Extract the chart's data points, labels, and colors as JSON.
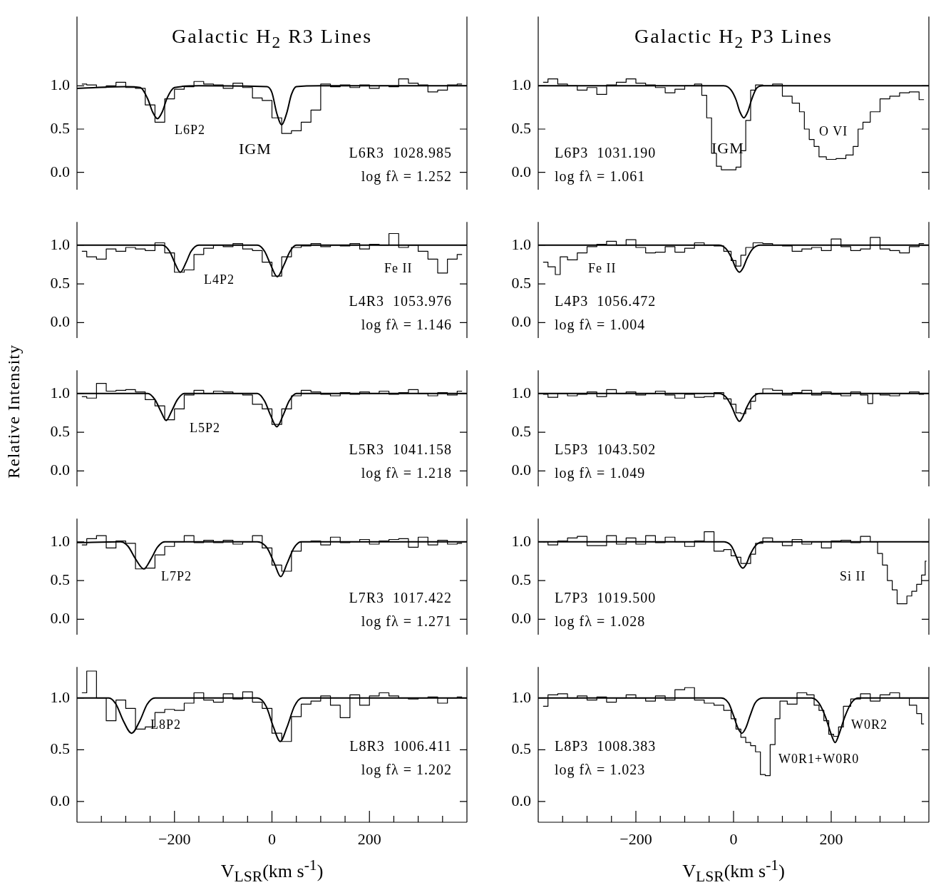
{
  "chart_data": [
    {
      "type": "step",
      "title": "Galactic H$_{2}$ R3 Lines",
      "xlim": [
        -400,
        400
      ],
      "ylim": [
        -0.2,
        1.8
      ],
      "tick_labels": "y",
      "yticks": [
        {
          "value": 0,
          "label": "0.0"
        },
        {
          "value": 0.5,
          "label": "0.5"
        },
        {
          "value": 1,
          "label": "1.0"
        }
      ],
      "marker": "none",
      "line_style": "solid",
      "annotations": [
        "L6P2",
        "IGM",
        "L6R3  1028.985",
        "log fλ = 1.252"
      ],
      "series": [
        {
          "color": "#000000",
          "x": [
            -390,
            -370,
            -350,
            -330,
            -310,
            -290,
            -270,
            -250,
            -230,
            -210,
            -190,
            -170,
            -150,
            -130,
            -110,
            -90,
            -70,
            -50,
            -30,
            -10,
            10,
            30,
            50,
            70,
            90,
            110,
            130,
            150,
            170,
            190,
            210,
            230,
            250,
            270,
            290,
            310,
            330,
            350,
            370,
            390
          ],
          "values": [
            1.02,
            1.01,
            0.98,
            1.0,
            1.04,
            0.98,
            0.97,
            0.78,
            0.58,
            0.85,
            0.96,
            0.99,
            1.05,
            1.02,
            1.01,
            0.97,
            1.03,
            0.98,
            0.86,
            0.83,
            0.63,
            0.45,
            0.48,
            0.58,
            0.72,
            1.02,
            0.99,
            1.01,
            0.98,
            1.01,
            0.97,
            1.0,
            0.99,
            1.08,
            1.03,
            1.01,
            0.93,
            0.95,
            1.01,
            1.02
          ]
        },
        {
          "type": "line",
          "color": "#000000",
          "x": [
            -400,
            -300,
            -270,
            -255,
            -245,
            -235,
            -225,
            -215,
            -200,
            -150,
            -10,
            0,
            10,
            20,
            30,
            40,
            50,
            100,
            400
          ],
          "values": [
            0.97,
            0.99,
            0.98,
            0.85,
            0.7,
            0.62,
            0.7,
            0.86,
            0.98,
            1.0,
            0.99,
            0.92,
            0.68,
            0.55,
            0.68,
            0.9,
            0.99,
            1.0,
            1.0
          ]
        }
      ]
    },
    {
      "type": "step",
      "title": "Galactic H$_{2}$ P3 Lines",
      "xlim": [
        -400,
        400
      ],
      "ylim": [
        -0.2,
        1.8
      ],
      "tick_labels": "y",
      "yticks": [
        {
          "value": 0,
          "label": "0.0"
        },
        {
          "value": 0.5,
          "label": "0.5"
        },
        {
          "value": 1,
          "label": "1.0"
        }
      ],
      "marker": "none",
      "line_style": "solid",
      "annotations": [
        "IGM",
        "O VI",
        "L6P3  1031.190",
        "log fλ = 1.061"
      ],
      "series": [
        {
          "color": "#000000",
          "x": [
            -390,
            -370,
            -350,
            -330,
            -310,
            -290,
            -270,
            -250,
            -230,
            -210,
            -190,
            -170,
            -150,
            -130,
            -110,
            -90,
            -70,
            -60,
            -50,
            -40,
            -30,
            -20,
            -10,
            0,
            10,
            20,
            30,
            40,
            50,
            70,
            90,
            110,
            130,
            140,
            150,
            160,
            170,
            180,
            200,
            220,
            240,
            250,
            260,
            270,
            290,
            310,
            330,
            350,
            370,
            390
          ],
          "values": [
            1.04,
            1.08,
            1.02,
            1.0,
            0.95,
            0.98,
            0.9,
            1.01,
            1.04,
            1.08,
            1.03,
            1.01,
            0.98,
            0.92,
            0.96,
            1.0,
            1.02,
            0.89,
            0.63,
            0.22,
            0.07,
            0.03,
            0.03,
            0.03,
            0.06,
            0.25,
            0.6,
            0.95,
            1.01,
            1.0,
            1.02,
            0.88,
            0.8,
            0.7,
            0.5,
            0.38,
            0.3,
            0.18,
            0.15,
            0.16,
            0.2,
            0.3,
            0.5,
            0.58,
            0.7,
            0.85,
            0.88,
            0.92,
            0.93,
            0.84
          ]
        },
        {
          "type": "line",
          "color": "#000000",
          "x": [
            -400,
            -20,
            -5,
            5,
            13,
            21,
            29,
            37,
            47,
            60,
            400
          ],
          "values": [
            1,
            1,
            0.95,
            0.84,
            0.7,
            0.63,
            0.7,
            0.84,
            0.97,
            1,
            1
          ]
        }
      ]
    },
    {
      "type": "step",
      "xlim": [
        -400,
        400
      ],
      "ylim": [
        -0.2,
        1.3
      ],
      "tick_labels": "y",
      "yticks": [
        {
          "value": 0,
          "label": "0.0"
        },
        {
          "value": 0.5,
          "label": "0.5"
        },
        {
          "value": 1,
          "label": "1.0"
        }
      ],
      "marker": "none",
      "line_style": "solid",
      "annotations": [
        "L4P2",
        "Fe II",
        "L4R3  1053.976",
        "log fλ = 1.146"
      ],
      "series": [
        {
          "color": "#000000",
          "x": [
            -390,
            -370,
            -350,
            -330,
            -310,
            -290,
            -270,
            -250,
            -230,
            -210,
            -190,
            -170,
            -150,
            -130,
            -110,
            -90,
            -70,
            -50,
            -30,
            -10,
            10,
            30,
            50,
            70,
            90,
            110,
            130,
            150,
            170,
            190,
            210,
            230,
            250,
            270,
            290,
            310,
            330,
            350,
            370,
            390
          ],
          "values": [
            0.92,
            0.85,
            0.82,
            0.95,
            0.92,
            0.97,
            0.95,
            0.93,
            1.03,
            0.9,
            0.65,
            0.68,
            0.88,
            0.96,
            1.0,
            0.98,
            1.02,
            0.95,
            0.93,
            0.78,
            0.6,
            0.85,
            0.97,
            0.99,
            1.02,
            0.98,
            1.0,
            0.99,
            1.02,
            0.95,
            1.01,
            1.0,
            1.15,
            0.97,
            1.0,
            0.92,
            0.82,
            0.64,
            0.82,
            0.88
          ]
        },
        {
          "type": "line",
          "color": "#000000",
          "x": [
            -400,
            -225,
            -210,
            -200,
            -188,
            -176,
            -166,
            -150,
            -30,
            -15,
            -3,
            11,
            25,
            37,
            50,
            400
          ],
          "values": [
            1,
            1,
            0.92,
            0.78,
            0.65,
            0.78,
            0.92,
            1,
            1,
            0.92,
            0.75,
            0.59,
            0.75,
            0.92,
            1,
            1
          ]
        }
      ]
    },
    {
      "type": "step",
      "xlim": [
        -400,
        400
      ],
      "ylim": [
        -0.2,
        1.3
      ],
      "tick_labels": "y",
      "yticks": [
        {
          "value": 0,
          "label": "0.0"
        },
        {
          "value": 0.5,
          "label": "0.5"
        },
        {
          "value": 1,
          "label": "1.0"
        }
      ],
      "marker": "none",
      "line_style": "solid",
      "annotations": [
        "Fe II",
        "L4P3  1056.472",
        "log fλ = 1.004"
      ],
      "series": [
        {
          "color": "#000000",
          "x": [
            -390,
            -370,
            -360,
            -350,
            -330,
            -310,
            -290,
            -270,
            -250,
            -230,
            -210,
            -190,
            -170,
            -150,
            -130,
            -110,
            -90,
            -70,
            -50,
            -30,
            -10,
            0,
            10,
            20,
            30,
            50,
            70,
            90,
            110,
            130,
            150,
            170,
            190,
            210,
            230,
            250,
            270,
            290,
            310,
            330,
            350,
            370,
            390
          ],
          "values": [
            0.78,
            0.72,
            0.62,
            0.85,
            0.81,
            0.9,
            0.98,
            1.01,
            1.05,
            1.0,
            1.07,
            0.97,
            0.9,
            0.91,
            0.98,
            0.91,
            0.96,
            1.03,
            1.0,
            0.99,
            0.92,
            0.8,
            0.73,
            0.87,
            0.97,
            1.03,
            1.02,
            1.0,
            0.99,
            0.92,
            0.95,
            0.97,
            0.93,
            1.08,
            0.98,
            0.93,
            0.95,
            1.1,
            0.95,
            0.93,
            0.9,
            0.98,
            1.02
          ]
        },
        {
          "type": "line",
          "color": "#000000",
          "x": [
            -400,
            -30,
            -15,
            -3,
            5,
            12,
            19,
            27,
            39,
            55,
            400
          ],
          "values": [
            1,
            1,
            0.95,
            0.82,
            0.7,
            0.65,
            0.7,
            0.82,
            0.95,
            1,
            1
          ]
        }
      ]
    },
    {
      "type": "step",
      "ylabel": "Relative Intensity",
      "xlim": [
        -400,
        400
      ],
      "ylim": [
        -0.2,
        1.3
      ],
      "tick_labels": "y",
      "yticks": [
        {
          "value": 0,
          "label": "0.0"
        },
        {
          "value": 0.5,
          "label": "0.5"
        },
        {
          "value": 1,
          "label": "1.0"
        }
      ],
      "marker": "none",
      "line_style": "solid",
      "annotations": [
        "L5P2",
        "L5R3  1041.158",
        "log fλ = 1.218"
      ],
      "series": [
        {
          "color": "#000000",
          "x": [
            -390,
            -370,
            -350,
            -330,
            -310,
            -290,
            -270,
            -250,
            -230,
            -210,
            -190,
            -170,
            -150,
            -130,
            -110,
            -90,
            -70,
            -50,
            -30,
            -10,
            10,
            30,
            50,
            70,
            90,
            110,
            130,
            150,
            170,
            190,
            210,
            230,
            250,
            270,
            290,
            310,
            330,
            350,
            370,
            390
          ],
          "values": [
            0.96,
            0.94,
            1.13,
            1.03,
            1.04,
            1.05,
            1.02,
            0.92,
            0.84,
            0.66,
            0.8,
            0.98,
            1.04,
            1.0,
            1.03,
            1.02,
            1.0,
            0.98,
            0.86,
            0.8,
            0.6,
            0.8,
            0.97,
            1.04,
            1.02,
            0.99,
            0.97,
            1.01,
            0.99,
            1.02,
            1.0,
            1.03,
            0.99,
            1.01,
            1.05,
            1.0,
            0.97,
            1.01,
            0.98,
            1.03
          ]
        },
        {
          "type": "line",
          "color": "#000000",
          "x": [
            -400,
            -255,
            -240,
            -228,
            -217,
            -206,
            -194,
            -180,
            -30,
            -15,
            -3,
            10,
            23,
            35,
            50,
            400
          ],
          "values": [
            1,
            1,
            0.92,
            0.77,
            0.65,
            0.77,
            0.92,
            1,
            1,
            0.9,
            0.72,
            0.57,
            0.72,
            0.9,
            1,
            1
          ]
        }
      ]
    },
    {
      "type": "step",
      "xlim": [
        -400,
        400
      ],
      "ylim": [
        -0.2,
        1.3
      ],
      "tick_labels": "y",
      "yticks": [
        {
          "value": 0,
          "label": "0.0"
        },
        {
          "value": 0.5,
          "label": "0.5"
        },
        {
          "value": 1,
          "label": "1.0"
        }
      ],
      "marker": "none",
      "line_style": "solid",
      "annotations": [
        "L5P3  1043.502",
        "log fλ = 1.049"
      ],
      "series": [
        {
          "color": "#000000",
          "x": [
            -390,
            -370,
            -350,
            -330,
            -310,
            -290,
            -270,
            -250,
            -230,
            -210,
            -190,
            -170,
            -150,
            -130,
            -110,
            -90,
            -70,
            -50,
            -30,
            -10,
            0,
            10,
            20,
            30,
            40,
            50,
            70,
            90,
            110,
            130,
            150,
            170,
            190,
            210,
            230,
            250,
            270,
            280,
            290,
            310,
            330,
            350,
            370,
            390
          ],
          "values": [
            0.99,
            0.95,
            1.0,
            0.97,
            0.99,
            1.02,
            0.96,
            1.05,
            1.0,
            1.02,
            0.98,
            1.0,
            1.03,
            0.98,
            0.94,
            0.99,
            0.95,
            0.96,
            1.01,
            0.93,
            0.86,
            0.75,
            0.74,
            0.8,
            0.9,
            1.0,
            1.06,
            1.04,
            0.98,
            1.01,
            1.04,
            0.98,
            1.02,
            0.99,
            0.97,
            1.02,
            0.98,
            0.87,
            1.0,
            0.98,
            0.97,
            1.0,
            1.02,
            0.99
          ]
        },
        {
          "type": "line",
          "color": "#000000",
          "x": [
            -400,
            -30,
            -15,
            -3,
            5,
            12,
            19,
            27,
            39,
            55,
            400
          ],
          "values": [
            1,
            1,
            0.95,
            0.82,
            0.7,
            0.64,
            0.7,
            0.82,
            0.95,
            1,
            1
          ]
        }
      ]
    },
    {
      "type": "step",
      "xlim": [
        -400,
        400
      ],
      "ylim": [
        -0.2,
        1.3
      ],
      "tick_labels": "y",
      "yticks": [
        {
          "value": 0,
          "label": "0.0"
        },
        {
          "value": 0.5,
          "label": "0.5"
        },
        {
          "value": 1,
          "label": "1.0"
        }
      ],
      "marker": "none",
      "line_style": "solid",
      "annotations": [
        "L7P2",
        "L7R3  1017.422",
        "log fλ = 1.271"
      ],
      "series": [
        {
          "color": "#000000",
          "x": [
            -390,
            -370,
            -350,
            -330,
            -310,
            -290,
            -270,
            -250,
            -230,
            -210,
            -190,
            -170,
            -150,
            -130,
            -110,
            -90,
            -70,
            -50,
            -30,
            -10,
            10,
            30,
            50,
            70,
            90,
            110,
            130,
            150,
            170,
            190,
            210,
            230,
            250,
            270,
            290,
            310,
            330,
            350,
            370,
            390
          ],
          "values": [
            0.96,
            1.04,
            1.08,
            0.92,
            1.01,
            0.98,
            0.65,
            0.66,
            0.83,
            0.94,
            1.0,
            1.08,
            0.99,
            1.02,
            0.99,
            1.02,
            0.97,
            1.0,
            1.08,
            0.92,
            0.7,
            0.62,
            0.88,
            1.0,
            1.01,
            0.96,
            1.06,
            0.99,
            1.0,
            1.03,
            0.97,
            1.01,
            1.03,
            1.04,
            0.93,
            1.06,
            0.96,
            1.02,
            0.97,
            0.98
          ]
        },
        {
          "type": "line",
          "color": "#000000",
          "x": [
            -400,
            -310,
            -295,
            -280,
            -263,
            -248,
            -235,
            -220,
            -30,
            -10,
            5,
            18,
            31,
            45,
            60,
            400
          ],
          "values": [
            0.99,
            1,
            0.94,
            0.78,
            0.65,
            0.78,
            0.93,
            1,
            1,
            0.92,
            0.72,
            0.55,
            0.72,
            0.92,
            1,
            1
          ]
        }
      ]
    },
    {
      "type": "step",
      "xlim": [
        -400,
        400
      ],
      "ylim": [
        -0.2,
        1.3
      ],
      "tick_labels": "y",
      "yticks": [
        {
          "value": 0,
          "label": "0.0"
        },
        {
          "value": 0.5,
          "label": "0.5"
        },
        {
          "value": 1,
          "label": "1.0"
        }
      ],
      "marker": "none",
      "line_style": "solid",
      "annotations": [
        "Si II",
        "L7P3  1019.500",
        "log fλ = 1.028"
      ],
      "series": [
        {
          "color": "#000000",
          "x": [
            -390,
            -370,
            -350,
            -330,
            -310,
            -290,
            -270,
            -250,
            -230,
            -210,
            -190,
            -170,
            -150,
            -130,
            -110,
            -90,
            -70,
            -50,
            -30,
            -10,
            0,
            10,
            20,
            30,
            40,
            50,
            70,
            90,
            110,
            130,
            150,
            170,
            190,
            210,
            230,
            250,
            270,
            290,
            300,
            310,
            320,
            330,
            340,
            350,
            360,
            370,
            380,
            390,
            395
          ],
          "values": [
            1.0,
            0.96,
            1.01,
            1.05,
            1.07,
            0.95,
            0.95,
            1.08,
            0.97,
            1.05,
            0.97,
            1.08,
            0.99,
            1.06,
            1.0,
            0.94,
            1.01,
            1.13,
            0.88,
            0.9,
            0.82,
            0.8,
            0.72,
            0.72,
            0.84,
            0.98,
            1.05,
            1.0,
            0.95,
            1.03,
            0.97,
            1.0,
            0.92,
            1.01,
            1.02,
            0.99,
            1.07,
            1.0,
            0.85,
            0.7,
            0.5,
            0.38,
            0.2,
            0.2,
            0.3,
            0.36,
            0.45,
            0.57,
            0.75
          ]
        },
        {
          "type": "line",
          "color": "#000000",
          "x": [
            -400,
            -20,
            -5,
            5,
            12,
            19,
            26,
            33,
            45,
            60,
            400
          ],
          "values": [
            1,
            1,
            0.95,
            0.82,
            0.71,
            0.66,
            0.71,
            0.82,
            0.95,
            1,
            1
          ]
        }
      ]
    },
    {
      "type": "step",
      "xlabel": "V$_{LSR}$(km s$^{-1}$)",
      "xlim": [
        -400,
        400
      ],
      "ylim": [
        -0.2,
        1.3
      ],
      "xticks": [
        {
          "value": -350,
          "label": null
        },
        {
          "value": -300,
          "label": null
        },
        {
          "value": -250,
          "label": null
        },
        {
          "value": -200,
          "label": "−200"
        },
        {
          "value": -150,
          "label": null
        },
        {
          "value": -100,
          "label": null
        },
        {
          "value": -50,
          "label": null
        },
        {
          "value": 0,
          "label": "0"
        },
        {
          "value": 50,
          "label": null
        },
        {
          "value": 100,
          "label": null
        },
        {
          "value": 150,
          "label": null
        },
        {
          "value": 200,
          "label": "200"
        },
        {
          "value": 250,
          "label": null
        },
        {
          "value": 300,
          "label": null
        },
        {
          "value": 350,
          "label": null
        }
      ],
      "yticks": [
        {
          "value": 0,
          "label": "0.0"
        },
        {
          "value": 0.5,
          "label": "0.5"
        },
        {
          "value": 1,
          "label": "1.0"
        }
      ],
      "marker": "none",
      "line_style": "solid",
      "annotations": [
        "L8P2",
        "L8R3  1006.411",
        "log fλ = 1.202"
      ],
      "series": [
        {
          "color": "#000000",
          "x": [
            -390,
            -370,
            -350,
            -330,
            -310,
            -290,
            -270,
            -250,
            -230,
            -210,
            -190,
            -170,
            -150,
            -130,
            -110,
            -90,
            -70,
            -50,
            -30,
            -10,
            10,
            30,
            50,
            70,
            90,
            110,
            130,
            150,
            170,
            190,
            210,
            230,
            250,
            270,
            290,
            310,
            330,
            350,
            370,
            390
          ],
          "values": [
            1.05,
            1.26,
            1.0,
            0.78,
            0.98,
            0.9,
            0.7,
            0.72,
            0.86,
            0.89,
            0.88,
            0.95,
            1.05,
            0.98,
            0.96,
            1.04,
            0.99,
            1.06,
            0.96,
            0.9,
            0.66,
            0.58,
            0.82,
            0.94,
            0.97,
            1.02,
            0.93,
            0.81,
            1.03,
            0.93,
            1.02,
            1.05,
            1.02,
            1.0,
            0.99,
            1.0,
            1.01,
            0.95,
            1.0,
            1.01
          ]
        },
        {
          "type": "line",
          "color": "#000000",
          "x": [
            -400,
            -335,
            -320,
            -305,
            -288,
            -271,
            -256,
            -240,
            -30,
            -12,
            3,
            17,
            31,
            46,
            62,
            400
          ],
          "values": [
            1,
            1,
            0.94,
            0.78,
            0.66,
            0.78,
            0.94,
            1,
            1,
            0.92,
            0.72,
            0.58,
            0.72,
            0.92,
            1,
            1
          ]
        }
      ]
    },
    {
      "type": "step",
      "xlabel": "V$_{LSR}$(km s$^{-1}$)",
      "xlim": [
        -400,
        400
      ],
      "ylim": [
        -0.2,
        1.3
      ],
      "xticks": [
        {
          "value": -350,
          "label": null
        },
        {
          "value": -300,
          "label": null
        },
        {
          "value": -250,
          "label": null
        },
        {
          "value": -200,
          "label": "−200"
        },
        {
          "value": -150,
          "label": null
        },
        {
          "value": -100,
          "label": null
        },
        {
          "value": -50,
          "label": null
        },
        {
          "value": 0,
          "label": "0"
        },
        {
          "value": 50,
          "label": null
        },
        {
          "value": 100,
          "label": null
        },
        {
          "value": 150,
          "label": null
        },
        {
          "value": 200,
          "label": "200"
        },
        {
          "value": 250,
          "label": null
        },
        {
          "value": 300,
          "label": null
        },
        {
          "value": 350,
          "label": null
        }
      ],
      "yticks": [
        {
          "value": 0,
          "label": "0.0"
        },
        {
          "value": 0.5,
          "label": "0.5"
        },
        {
          "value": 1,
          "label": "1.0"
        }
      ],
      "marker": "none",
      "line_style": "solid",
      "annotations": [
        "W0R2",
        "W0R1+W0R0",
        "L8P3  1008.383",
        "log fλ = 1.023"
      ],
      "series": [
        {
          "color": "#000000",
          "x": [
            -390,
            -370,
            -350,
            -330,
            -310,
            -290,
            -270,
            -250,
            -230,
            -210,
            -190,
            -170,
            -150,
            -130,
            -110,
            -90,
            -70,
            -50,
            -30,
            -10,
            0,
            10,
            20,
            30,
            40,
            50,
            60,
            70,
            80,
            90,
            100,
            120,
            140,
            160,
            170,
            180,
            190,
            200,
            210,
            220,
            230,
            250,
            270,
            290,
            310,
            330,
            350,
            370,
            380,
            390
          ],
          "values": [
            0.92,
            1.03,
            1.04,
            1.0,
            1.02,
            0.98,
            1.01,
            0.96,
            1.0,
            1.03,
            1.0,
            0.97,
            1.02,
            0.98,
            1.08,
            1.1,
            0.98,
            0.95,
            0.93,
            0.88,
            0.8,
            0.7,
            0.62,
            0.57,
            0.54,
            0.48,
            0.26,
            0.25,
            0.55,
            0.8,
            0.97,
            0.94,
            1.05,
            1.03,
            0.93,
            0.88,
            0.78,
            0.65,
            0.63,
            0.72,
            0.92,
            0.99,
            1.04,
            0.97,
            1.03,
            1.05,
            1.0,
            0.93,
            0.85,
            0.75
          ]
        },
        {
          "type": "line",
          "color": "#000000",
          "x": [
            -400,
            -25,
            -10,
            0,
            9,
            17,
            25,
            34,
            44,
            60,
            160,
            175,
            188,
            200,
            208,
            216,
            228,
            241,
            255,
            400
          ],
          "values": [
            1,
            1,
            0.95,
            0.83,
            0.71,
            0.66,
            0.71,
            0.83,
            0.95,
            1,
            1,
            0.95,
            0.82,
            0.65,
            0.57,
            0.65,
            0.82,
            0.95,
            1,
            1
          ]
        }
      ]
    }
  ]
}
